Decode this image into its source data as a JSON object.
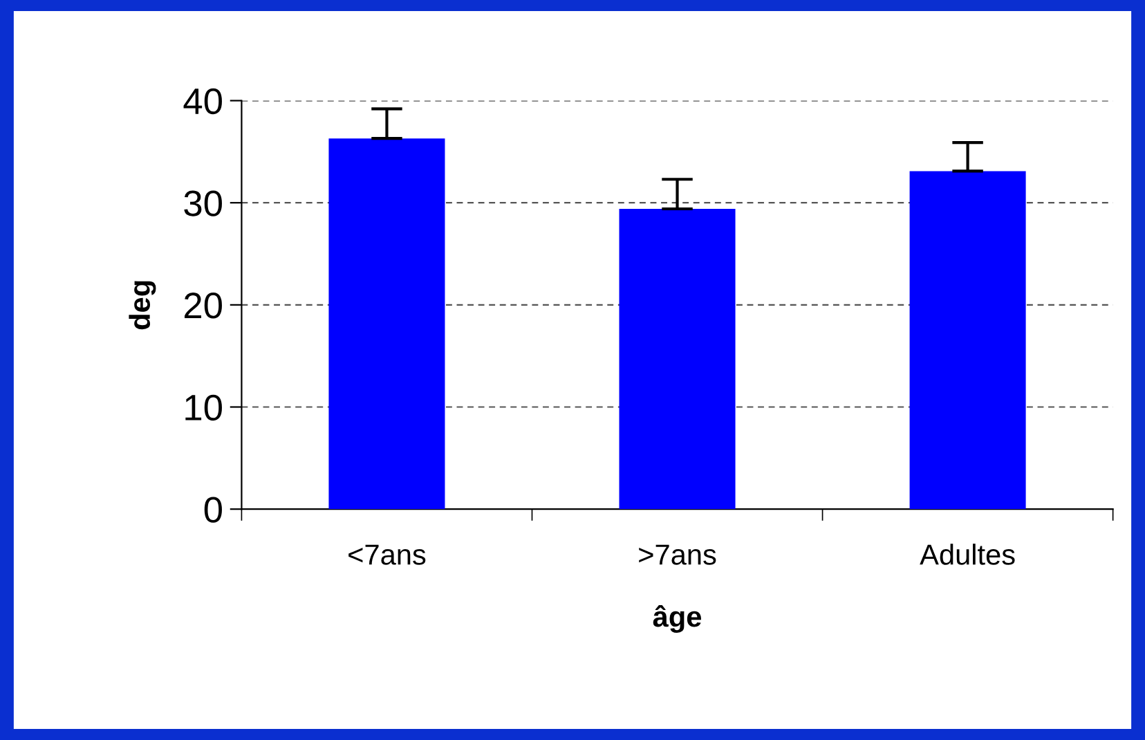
{
  "chart_data": {
    "type": "bar",
    "xlabel": "âge",
    "ylabel": "deg",
    "categories": [
      "<7ans",
      ">7ans",
      "Adultes"
    ],
    "values": [
      36.3,
      29.4,
      33.1
    ],
    "errors": [
      [
        36.3,
        39.2
      ],
      [
        29.4,
        32.3
      ],
      [
        33.1,
        35.9
      ]
    ],
    "color": "#0000ff",
    "ylim": [
      0,
      40
    ],
    "yticks": [
      0,
      10,
      20,
      30,
      40
    ],
    "grid": "y",
    "line_style": "dashed"
  }
}
